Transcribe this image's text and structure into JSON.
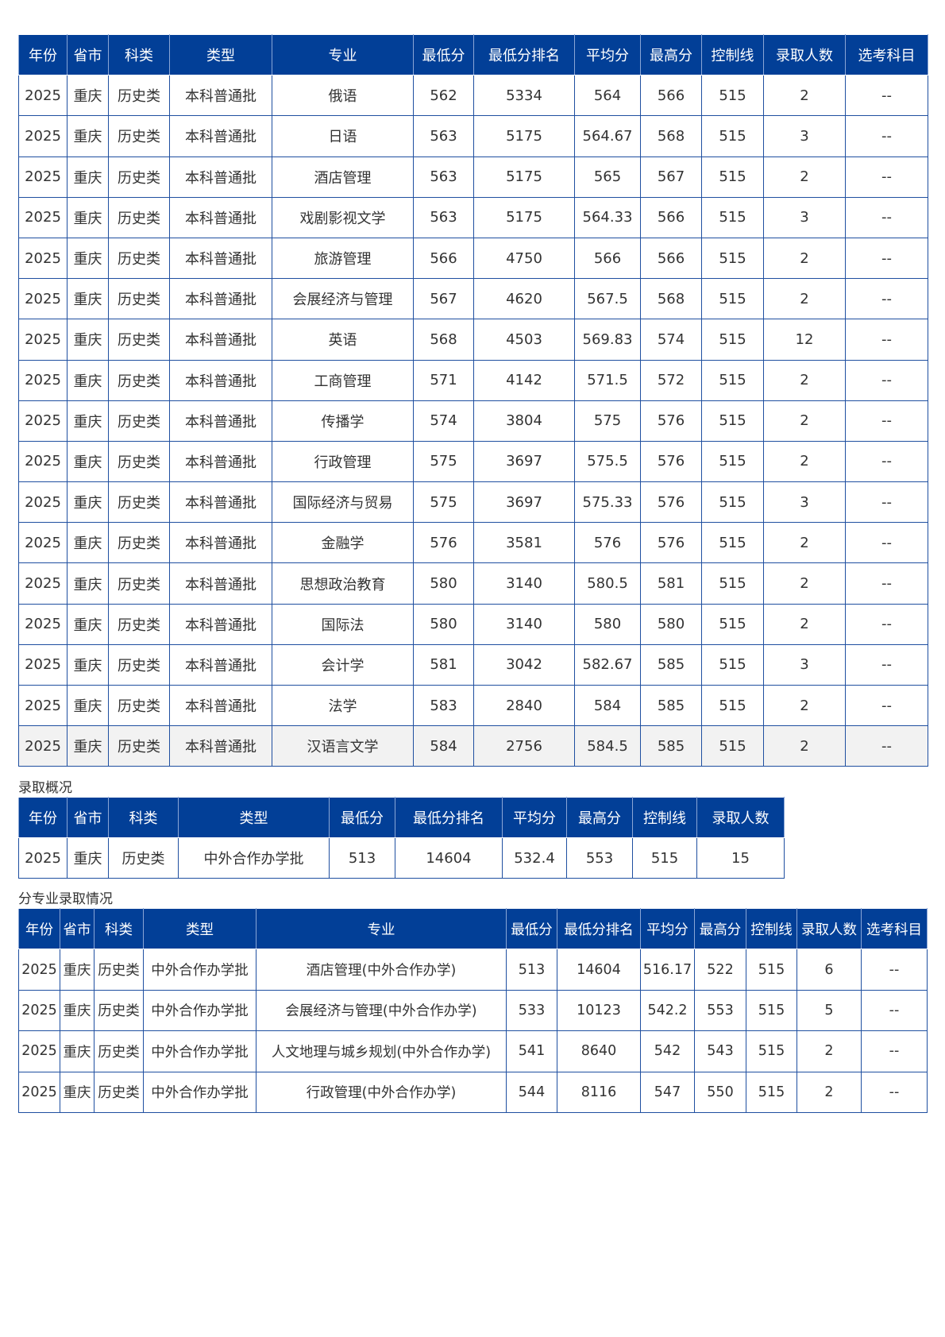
{
  "table1": {
    "headers": [
      "年份",
      "省市",
      "科类",
      "类型",
      "专业",
      "最低分",
      "最低分排名",
      "平均分",
      "最高分",
      "控制线",
      "录取人数",
      "选考科目"
    ],
    "rows": [
      [
        "2025",
        "重庆",
        "历史类",
        "本科普通批",
        "俄语",
        "562",
        "5334",
        "564",
        "566",
        "515",
        "2",
        "--"
      ],
      [
        "2025",
        "重庆",
        "历史类",
        "本科普通批",
        "日语",
        "563",
        "5175",
        "564.67",
        "568",
        "515",
        "3",
        "--"
      ],
      [
        "2025",
        "重庆",
        "历史类",
        "本科普通批",
        "酒店管理",
        "563",
        "5175",
        "565",
        "567",
        "515",
        "2",
        "--"
      ],
      [
        "2025",
        "重庆",
        "历史类",
        "本科普通批",
        "戏剧影视文学",
        "563",
        "5175",
        "564.33",
        "566",
        "515",
        "3",
        "--"
      ],
      [
        "2025",
        "重庆",
        "历史类",
        "本科普通批",
        "旅游管理",
        "566",
        "4750",
        "566",
        "566",
        "515",
        "2",
        "--"
      ],
      [
        "2025",
        "重庆",
        "历史类",
        "本科普通批",
        "会展经济与管理",
        "567",
        "4620",
        "567.5",
        "568",
        "515",
        "2",
        "--"
      ],
      [
        "2025",
        "重庆",
        "历史类",
        "本科普通批",
        "英语",
        "568",
        "4503",
        "569.83",
        "574",
        "515",
        "12",
        "--"
      ],
      [
        "2025",
        "重庆",
        "历史类",
        "本科普通批",
        "工商管理",
        "571",
        "4142",
        "571.5",
        "572",
        "515",
        "2",
        "--"
      ],
      [
        "2025",
        "重庆",
        "历史类",
        "本科普通批",
        "传播学",
        "574",
        "3804",
        "575",
        "576",
        "515",
        "2",
        "--"
      ],
      [
        "2025",
        "重庆",
        "历史类",
        "本科普通批",
        "行政管理",
        "575",
        "3697",
        "575.5",
        "576",
        "515",
        "2",
        "--"
      ],
      [
        "2025",
        "重庆",
        "历史类",
        "本科普通批",
        "国际经济与贸易",
        "575",
        "3697",
        "575.33",
        "576",
        "515",
        "3",
        "--"
      ],
      [
        "2025",
        "重庆",
        "历史类",
        "本科普通批",
        "金融学",
        "576",
        "3581",
        "576",
        "576",
        "515",
        "2",
        "--"
      ],
      [
        "2025",
        "重庆",
        "历史类",
        "本科普通批",
        "思想政治教育",
        "580",
        "3140",
        "580.5",
        "581",
        "515",
        "2",
        "--"
      ],
      [
        "2025",
        "重庆",
        "历史类",
        "本科普通批",
        "国际法",
        "580",
        "3140",
        "580",
        "580",
        "515",
        "2",
        "--"
      ],
      [
        "2025",
        "重庆",
        "历史类",
        "本科普通批",
        "会计学",
        "581",
        "3042",
        "582.67",
        "585",
        "515",
        "3",
        "--"
      ],
      [
        "2025",
        "重庆",
        "历史类",
        "本科普通批",
        "法学",
        "583",
        "2840",
        "584",
        "585",
        "515",
        "2",
        "--"
      ],
      [
        "2025",
        "重庆",
        "历史类",
        "本科普通批",
        "汉语言文学",
        "584",
        "2756",
        "584.5",
        "585",
        "515",
        "2",
        "--"
      ]
    ]
  },
  "overview": {
    "label": "录取概况",
    "headers": [
      "年份",
      "省市",
      "科类",
      "类型",
      "最低分",
      "最低分排名",
      "平均分",
      "最高分",
      "控制线",
      "录取人数"
    ],
    "rows": [
      [
        "2025",
        "重庆",
        "历史类",
        "中外合作办学批",
        "513",
        "14604",
        "532.4",
        "553",
        "515",
        "15"
      ]
    ]
  },
  "by_major": {
    "label": "分专业录取情况",
    "headers": [
      "年份",
      "省市",
      "科类",
      "类型",
      "专业",
      "最低分",
      "最低分排名",
      "平均分",
      "最高分",
      "控制线",
      "录取人数",
      "选考科目"
    ],
    "rows": [
      [
        "2025",
        "重庆",
        "历史类",
        "中外合作办学批",
        "酒店管理(中外合作办学)",
        "513",
        "14604",
        "516.17",
        "522",
        "515",
        "6",
        "--"
      ],
      [
        "2025",
        "重庆",
        "历史类",
        "中外合作办学批",
        "会展经济与管理(中外合作办学)",
        "533",
        "10123",
        "542.2",
        "553",
        "515",
        "5",
        "--"
      ],
      [
        "2025",
        "重庆",
        "历史类",
        "中外合作办学批",
        "人文地理与城乡规划(中外合作办学)",
        "541",
        "8640",
        "542",
        "543",
        "515",
        "2",
        "--"
      ],
      [
        "2025",
        "重庆",
        "历史类",
        "中外合作办学批",
        "行政管理(中外合作办学)",
        "544",
        "8116",
        "547",
        "550",
        "515",
        "2",
        "--"
      ]
    ]
  },
  "colors": {
    "header_bg": "#023f97",
    "border": "#1f4fa0",
    "highlight_row": "#f2f2f2"
  }
}
